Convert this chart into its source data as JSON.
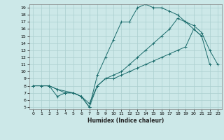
{
  "xlabel": "Humidex (Indice chaleur)",
  "bg_color": "#cce8e8",
  "grid_color": "#aacfcf",
  "line_color": "#1a6b6b",
  "xlim": [
    -0.5,
    23.5
  ],
  "ylim": [
    4.7,
    19.5
  ],
  "yticks": [
    5,
    6,
    7,
    8,
    9,
    10,
    11,
    12,
    13,
    14,
    15,
    16,
    17,
    18,
    19
  ],
  "xticks": [
    0,
    1,
    2,
    3,
    4,
    5,
    6,
    7,
    8,
    9,
    10,
    11,
    12,
    13,
    14,
    15,
    16,
    17,
    18,
    19,
    20,
    21,
    22,
    23
  ],
  "curve1_x": [
    0,
    1,
    2,
    3,
    4,
    5,
    6,
    7,
    8,
    9,
    10,
    11,
    12,
    13,
    14,
    15,
    16,
    17,
    18,
    19,
    20,
    21
  ],
  "curve1_y": [
    8,
    8,
    8,
    6.5,
    7,
    7,
    6.5,
    5,
    9.5,
    12,
    14.5,
    17,
    17,
    19,
    19.5,
    19,
    19,
    18.5,
    18,
    17,
    16,
    15
  ],
  "curve2_x": [
    0,
    1,
    2,
    3,
    4,
    5,
    6,
    7,
    8,
    9,
    10,
    11,
    12,
    13,
    14,
    15,
    16,
    17,
    18,
    19,
    20,
    21,
    22
  ],
  "curve2_y": [
    8,
    8,
    8,
    7.5,
    7,
    7,
    6.5,
    5,
    8,
    9,
    9,
    9.5,
    10,
    10.5,
    11,
    11.5,
    12,
    12.5,
    13,
    13.5,
    16,
    15,
    11
  ],
  "curve3_x": [
    0,
    2,
    3,
    5,
    6,
    7,
    8,
    9,
    10,
    11,
    12,
    13,
    14,
    15,
    16,
    17,
    18,
    19,
    20,
    21,
    22,
    23
  ],
  "curve3_y": [
    8,
    8,
    7.5,
    7,
    6.5,
    5.5,
    8,
    9,
    9.5,
    10,
    11,
    12,
    13,
    14,
    15,
    16,
    17.5,
    17,
    16.5,
    15.5,
    13,
    11
  ]
}
